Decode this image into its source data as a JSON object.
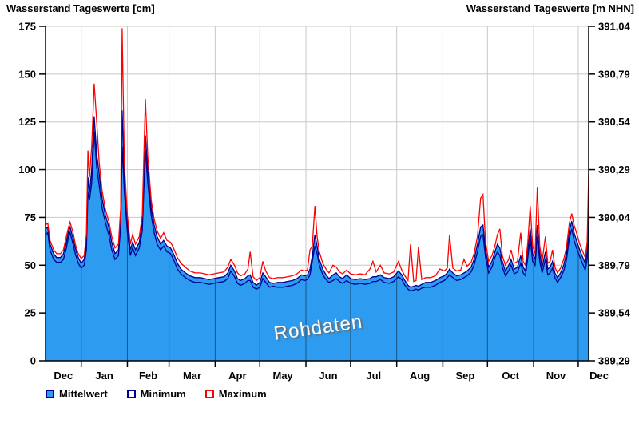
{
  "legend": {
    "items": [
      {
        "label": "Mittelwert",
        "fill": "#2D9BF0",
        "border": "#000090"
      },
      {
        "label": "Minimum",
        "fill": "#FFFFFF",
        "border": "#000090"
      },
      {
        "label": "Maximum",
        "fill": "#FFFFFF",
        "border": "#FF0000"
      }
    ]
  },
  "colors": {
    "area_fill": "#2D9BF0",
    "mean_stroke": "#000090",
    "min_stroke": "#000090",
    "max_stroke": "#FF0000",
    "grid": "#C8C8C8",
    "grid_on_fill": "rgba(0,0,0,0.45)",
    "axis": "#000000",
    "watermark_text": "#FFFFFF"
  },
  "chart_data": {
    "type": "area",
    "title_left": "Wasserstand Tageswerte [cm]",
    "title_right": "Wasserstand Tageswerte [m NHN]",
    "watermark": "Rohdaten",
    "grid": true,
    "legend_position": "bottom-left",
    "x_axis": {
      "total_days": 365,
      "month_labels": [
        "Dec",
        "Jan",
        "Feb",
        "Mar",
        "Apr",
        "May",
        "Jun",
        "Jul",
        "Aug",
        "Sep",
        "Oct",
        "Nov",
        "Dec"
      ],
      "month_label_days": [
        12,
        39.5,
        69,
        98.5,
        129,
        159.5,
        190,
        220.5,
        251.5,
        282,
        312.5,
        343,
        372
      ],
      "month_boundary_days": [
        24,
        55,
        83,
        114,
        144,
        175,
        205,
        236,
        267,
        297,
        328,
        358
      ]
    },
    "y_axis_left": {
      "label": "Wasserstand Tageswerte [cm]",
      "min": 0,
      "max": 175,
      "ticks": [
        0,
        25,
        50,
        75,
        100,
        125,
        150,
        175
      ]
    },
    "y_axis_right": {
      "label": "Wasserstand Tageswerte [m NHN]",
      "tick_labels": [
        "389,29",
        "389,54",
        "389,79",
        "390,04",
        "390,29",
        "390,54",
        "390,79",
        "391,04"
      ],
      "note": "m NHN = cm/100 + 389,29"
    },
    "series": [
      {
        "name": "Mittelwert",
        "style": "area",
        "fill": "#2D9BF0",
        "stroke": "#000090"
      },
      {
        "name": "Minimum",
        "style": "line",
        "stroke": "#000090"
      },
      {
        "name": "Maximum",
        "style": "line",
        "stroke": "#FF0000"
      }
    ],
    "points_format": [
      "day",
      "min_cm",
      "mittelwert_cm",
      "max_cm"
    ],
    "points": [
      [
        0,
        66,
        69,
        71
      ],
      [
        1.5,
        67,
        70,
        72
      ],
      [
        3,
        58,
        61,
        63
      ],
      [
        5.5,
        53,
        56,
        58
      ],
      [
        7.5,
        51.5,
        54,
        56
      ],
      [
        10,
        51.5,
        54,
        56
      ],
      [
        12,
        53,
        56,
        58
      ],
      [
        14,
        59,
        62,
        65
      ],
      [
        15.5,
        65,
        68,
        70
      ],
      [
        16.5,
        67,
        70,
        72.5
      ],
      [
        18.5,
        61,
        64,
        67
      ],
      [
        20,
        56,
        59,
        61
      ],
      [
        22,
        51,
        54,
        56
      ],
      [
        24,
        48.5,
        51,
        53.5
      ],
      [
        26,
        50,
        53,
        55
      ],
      [
        27.5,
        58,
        62,
        66
      ],
      [
        28.5,
        88,
        96,
        110
      ],
      [
        29.5,
        84,
        88,
        96
      ],
      [
        31,
        93,
        100,
        112
      ],
      [
        32.7,
        120,
        128,
        145
      ],
      [
        34.4,
        101,
        108,
        125
      ],
      [
        36,
        92,
        98,
        104
      ],
      [
        38,
        80,
        85,
        89
      ],
      [
        40.3,
        72,
        76,
        79
      ],
      [
        42.5,
        66,
        70,
        73
      ],
      [
        44.5,
        58,
        62,
        65
      ],
      [
        46.7,
        53,
        56,
        59
      ],
      [
        49,
        55,
        58,
        61
      ],
      [
        50.5,
        70,
        75,
        80
      ],
      [
        51.5,
        112,
        131,
        174
      ],
      [
        53,
        88,
        95,
        103
      ],
      [
        55,
        67,
        72,
        76
      ],
      [
        57,
        55,
        58,
        61
      ],
      [
        58.5,
        59,
        62,
        66
      ],
      [
        60.5,
        55,
        58,
        61
      ],
      [
        63,
        59,
        62,
        65
      ],
      [
        65,
        68,
        72,
        76
      ],
      [
        67.1,
        110,
        118,
        137
      ],
      [
        68.7,
        93,
        100,
        107
      ],
      [
        71,
        76,
        80,
        84
      ],
      [
        73,
        67,
        71,
        74
      ],
      [
        75,
        61,
        65,
        68
      ],
      [
        77.3,
        58,
        61,
        64
      ],
      [
        79.4,
        60,
        63,
        67
      ],
      [
        81.6,
        57,
        60,
        63
      ],
      [
        84,
        56,
        59,
        62
      ],
      [
        86,
        53,
        56,
        59
      ],
      [
        88.6,
        48,
        51,
        54
      ],
      [
        91,
        45.5,
        48,
        51
      ],
      [
        94,
        43.5,
        46,
        49
      ],
      [
        97,
        42,
        44.5,
        47
      ],
      [
        100.5,
        41,
        43.5,
        46
      ],
      [
        104,
        41,
        43.5,
        46
      ],
      [
        107,
        40.5,
        43,
        45.5
      ],
      [
        110,
        40,
        42.5,
        45
      ],
      [
        113,
        40.5,
        43,
        45.5
      ],
      [
        116.5,
        41,
        43.5,
        46
      ],
      [
        120,
        41.5,
        44,
        46.5
      ],
      [
        122.5,
        43,
        46,
        49
      ],
      [
        124.5,
        47,
        50,
        53
      ],
      [
        127,
        44,
        47,
        50
      ],
      [
        129,
        40.5,
        43,
        46
      ],
      [
        131,
        39.5,
        42,
        44.5
      ],
      [
        134,
        40.5,
        43,
        45.5
      ],
      [
        136,
        42,
        44.5,
        48
      ],
      [
        137.5,
        42,
        45,
        57
      ],
      [
        139.5,
        38.5,
        41,
        44
      ],
      [
        141.7,
        37.5,
        39.5,
        42
      ],
      [
        144,
        38.5,
        41,
        43.5
      ],
      [
        146,
        43,
        46,
        52
      ],
      [
        148,
        41,
        44,
        47
      ],
      [
        150.5,
        38.5,
        41,
        43.5
      ],
      [
        153,
        39,
        40.5,
        43
      ],
      [
        156,
        38.5,
        41,
        43.5
      ],
      [
        159.5,
        38.5,
        41,
        43.5
      ],
      [
        162.5,
        39,
        41.5,
        44
      ],
      [
        166,
        39.5,
        42,
        44.5
      ],
      [
        169,
        40.5,
        43,
        45.5
      ],
      [
        172,
        42.5,
        45,
        47.5
      ],
      [
        174,
        42,
        44.5,
        47
      ],
      [
        176,
        42.5,
        45,
        47.5
      ],
      [
        177.7,
        45,
        48,
        58
      ],
      [
        179.3,
        52,
        55,
        60
      ],
      [
        181,
        60,
        66,
        81
      ],
      [
        182.5,
        56,
        60,
        65
      ],
      [
        184,
        50,
        53,
        57
      ],
      [
        186.3,
        45,
        48,
        51
      ],
      [
        188.5,
        42.5,
        45,
        48
      ],
      [
        190.5,
        41,
        43,
        46
      ],
      [
        193.2,
        42,
        45,
        50
      ],
      [
        195.4,
        43,
        46,
        49
      ],
      [
        197.5,
        41.5,
        44,
        46.5
      ],
      [
        199.7,
        40.5,
        43,
        45.5
      ],
      [
        202.4,
        42,
        45,
        47.5
      ],
      [
        205,
        40.5,
        43,
        45.5
      ],
      [
        208.3,
        40,
        42.5,
        45
      ],
      [
        211.5,
        40.5,
        43,
        45.5
      ],
      [
        214.7,
        40,
        42.5,
        45
      ],
      [
        218,
        40.5,
        43,
        48
      ],
      [
        220,
        41.5,
        44,
        52
      ],
      [
        222.2,
        41.5,
        44,
        46.5
      ],
      [
        225,
        42.5,
        45,
        50
      ],
      [
        227.6,
        41,
        43.5,
        46
      ],
      [
        231,
        40.5,
        43,
        45.5
      ],
      [
        234,
        41.5,
        44,
        46.5
      ],
      [
        237.2,
        44,
        47,
        52
      ],
      [
        239.4,
        42.5,
        45,
        47.5
      ],
      [
        241.5,
        39.5,
        42,
        44.5
      ],
      [
        243.6,
        37.5,
        39.5,
        42
      ],
      [
        245.3,
        36.5,
        38.5,
        61
      ],
      [
        247.4,
        37,
        39,
        41.5
      ],
      [
        249,
        37.5,
        39.5,
        42
      ],
      [
        250.6,
        37,
        39,
        59.5
      ],
      [
        252.8,
        38,
        40,
        42.5
      ],
      [
        255.4,
        38.5,
        41,
        43.5
      ],
      [
        258.7,
        38.5,
        41,
        43.5
      ],
      [
        262,
        39.5,
        42,
        44.5
      ],
      [
        265,
        41,
        43.5,
        48
      ],
      [
        268,
        42,
        44.5,
        47
      ],
      [
        270,
        43.5,
        46,
        48.5
      ],
      [
        271.5,
        45,
        48,
        66
      ],
      [
        273.7,
        43.5,
        46,
        48.5
      ],
      [
        276.4,
        42,
        44.5,
        47
      ],
      [
        279,
        42.5,
        45,
        47.5
      ],
      [
        281.2,
        43.5,
        46,
        53
      ],
      [
        283.3,
        44.5,
        47,
        49.5
      ],
      [
        286,
        46.5,
        49,
        51.5
      ],
      [
        288,
        50,
        53,
        56
      ],
      [
        290.3,
        57,
        61,
        65
      ],
      [
        292.4,
        65,
        70,
        85
      ],
      [
        294,
        66,
        71,
        87
      ],
      [
        295.7,
        54,
        58,
        62
      ],
      [
        297.8,
        46,
        49,
        52
      ],
      [
        300,
        49,
        52,
        55
      ],
      [
        302,
        54,
        57,
        60
      ],
      [
        303.7,
        57,
        61,
        66
      ],
      [
        305.3,
        55,
        59,
        69
      ],
      [
        307,
        49,
        52,
        55
      ],
      [
        309,
        44.5,
        47,
        50
      ],
      [
        311.2,
        47,
        50,
        53
      ],
      [
        312.8,
        50,
        53,
        58
      ],
      [
        315,
        45.5,
        48,
        51
      ],
      [
        317.1,
        46.5,
        49,
        52
      ],
      [
        319.3,
        51,
        55,
        67
      ],
      [
        321,
        46,
        49,
        52
      ],
      [
        322.5,
        44.5,
        47,
        50
      ],
      [
        324.1,
        54,
        58,
        62
      ],
      [
        325.7,
        64,
        69,
        81
      ],
      [
        327.3,
        52,
        56,
        60
      ],
      [
        329,
        50,
        53,
        56
      ],
      [
        330.5,
        65,
        71,
        91
      ],
      [
        332.1,
        52,
        56,
        60
      ],
      [
        333.7,
        46,
        49,
        52
      ],
      [
        335.9,
        53,
        57,
        65
      ],
      [
        337.5,
        45,
        48,
        51
      ],
      [
        339.1,
        46,
        49,
        52
      ],
      [
        340.7,
        48.5,
        52,
        58
      ],
      [
        342.3,
        43.5,
        46,
        49
      ],
      [
        344,
        41,
        43.5,
        46
      ],
      [
        346.1,
        43.5,
        46,
        48.5
      ],
      [
        348.2,
        47,
        50,
        53
      ],
      [
        350,
        52.5,
        56,
        59
      ],
      [
        352,
        64,
        68,
        72
      ],
      [
        353.6,
        69,
        73,
        77
      ],
      [
        355.2,
        63,
        67,
        71
      ],
      [
        356.8,
        59,
        63,
        67
      ],
      [
        359,
        54.5,
        58,
        61
      ],
      [
        361.1,
        50.5,
        54,
        57
      ],
      [
        362.7,
        47.5,
        51,
        54
      ],
      [
        364,
        53,
        57,
        62
      ],
      [
        365,
        76,
        82,
        98
      ]
    ]
  }
}
